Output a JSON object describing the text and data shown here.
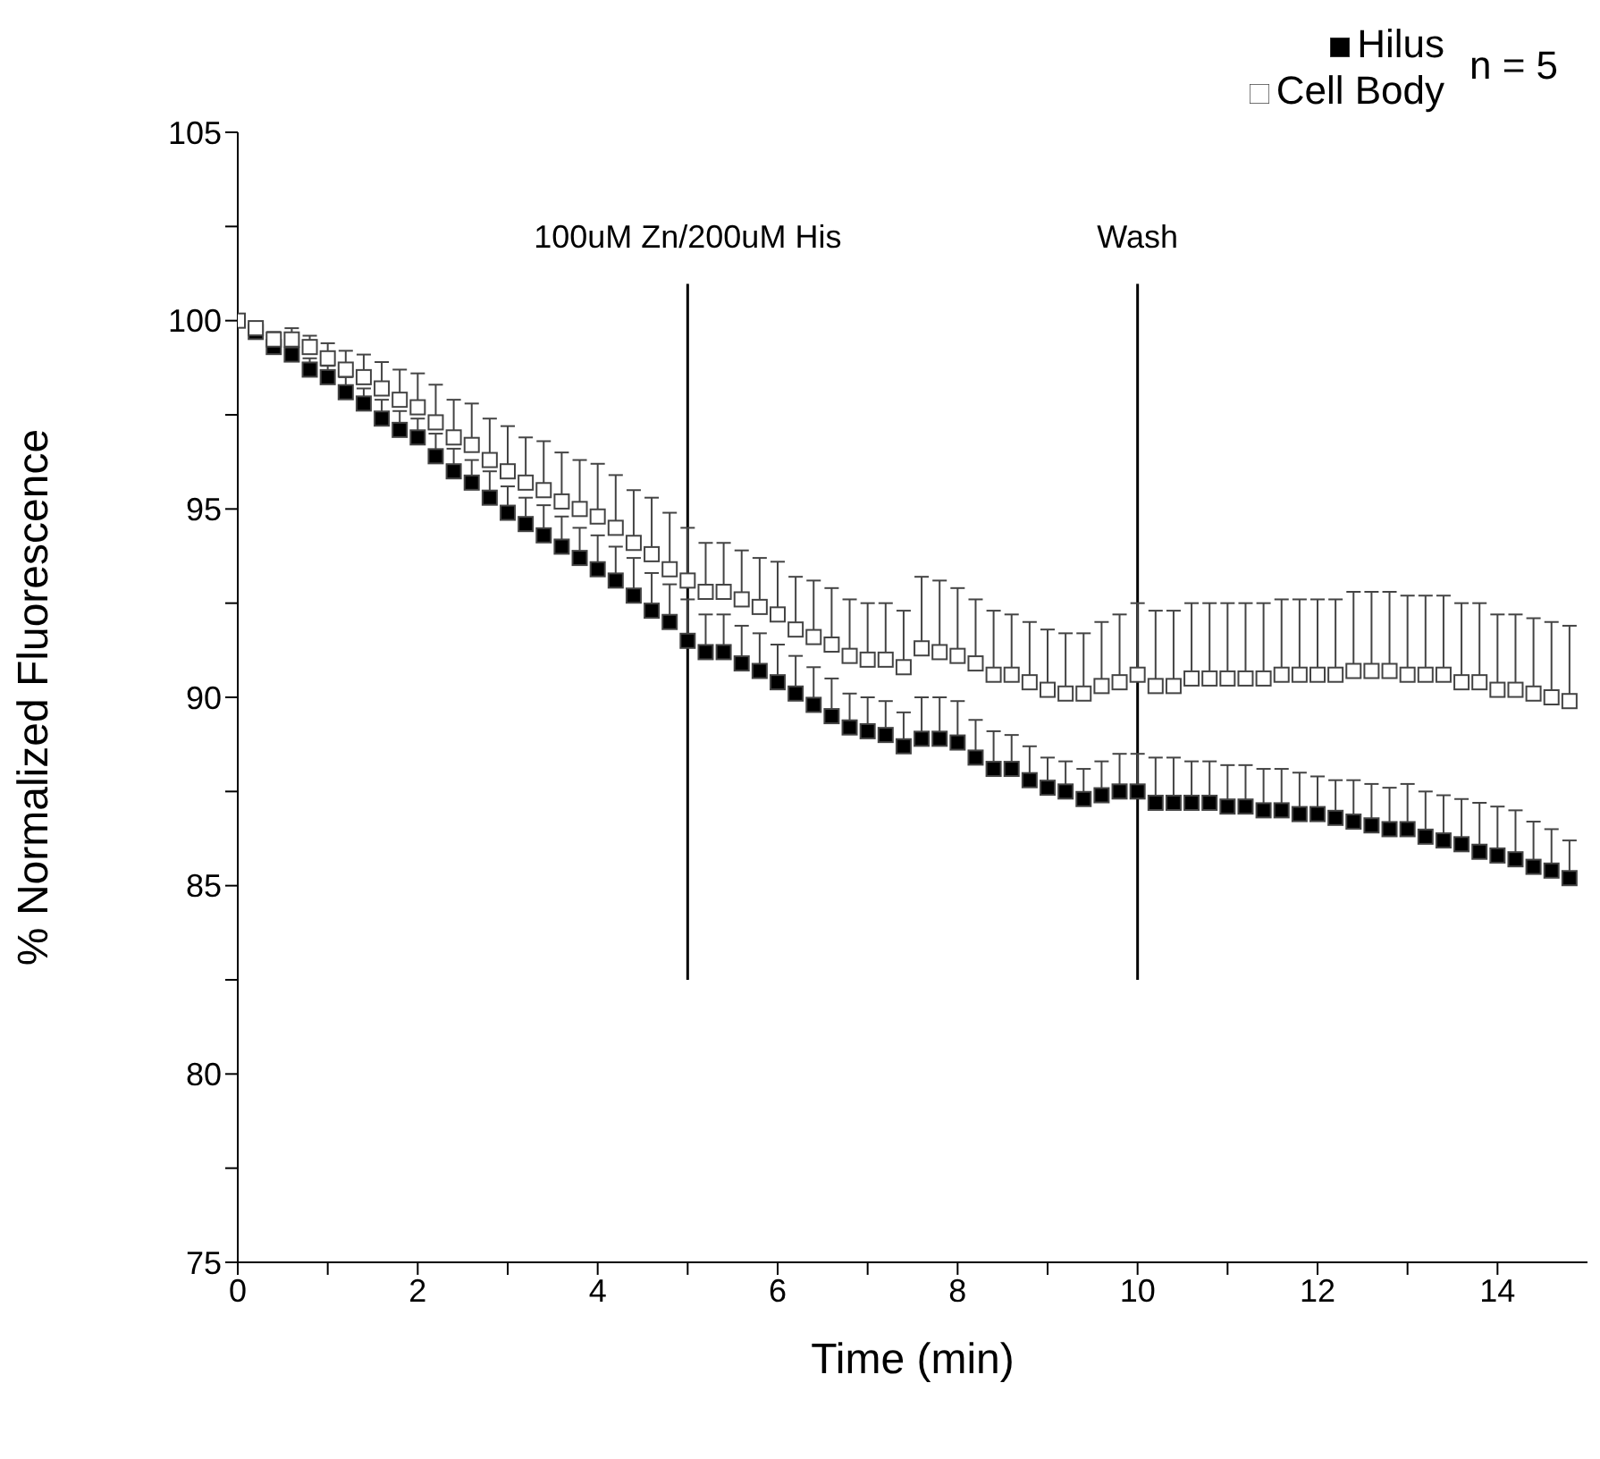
{
  "chart_data": {
    "type": "scatter",
    "xlabel": "Time (min)",
    "ylabel": "% Normalized Fluorescence",
    "x": [
      0,
      0.2,
      0.4,
      0.6,
      0.8,
      1.0,
      1.2,
      1.4,
      1.6,
      1.8,
      2.0,
      2.2,
      2.4,
      2.6,
      2.8,
      3.0,
      3.2,
      3.4,
      3.6,
      3.8,
      4.0,
      4.2,
      4.4,
      4.6,
      4.8,
      5.0,
      5.2,
      5.4,
      5.6,
      5.8,
      6.0,
      6.2,
      6.4,
      6.6,
      6.8,
      7.0,
      7.2,
      7.4,
      7.6,
      7.8,
      8.0,
      8.2,
      8.4,
      8.6,
      8.8,
      9.0,
      9.2,
      9.4,
      9.6,
      9.8,
      10.0,
      10.2,
      10.4,
      10.6,
      10.8,
      11.0,
      11.2,
      11.4,
      11.6,
      11.8,
      12.0,
      12.2,
      12.4,
      12.6,
      12.8,
      13.0,
      13.2,
      13.4,
      13.6,
      13.8,
      14.0,
      14.2,
      14.4,
      14.6,
      14.8
    ],
    "series": [
      {
        "name": "Hilus",
        "color": "#000000",
        "values": [
          null,
          99.7,
          99.3,
          99.1,
          98.7,
          98.5,
          98.1,
          97.8,
          97.4,
          97.1,
          96.9,
          96.4,
          96.0,
          95.7,
          95.3,
          94.9,
          94.6,
          94.3,
          94.0,
          93.7,
          93.4,
          93.1,
          92.7,
          92.3,
          92.0,
          91.5,
          91.2,
          91.2,
          90.9,
          90.7,
          90.4,
          90.1,
          89.8,
          89.5,
          89.2,
          89.1,
          89.0,
          88.7,
          88.9,
          88.9,
          88.8,
          88.4,
          88.1,
          88.1,
          87.8,
          87.6,
          87.5,
          87.3,
          87.4,
          87.5,
          87.5,
          87.2,
          87.2,
          87.2,
          87.2,
          87.1,
          87.1,
          87.0,
          87.0,
          86.9,
          86.9,
          86.8,
          86.7,
          86.6,
          86.5,
          86.5,
          86.3,
          86.2,
          86.1,
          85.9,
          85.8,
          85.7,
          85.5,
          85.4,
          85.2
        ],
        "errors": [
          null,
          [
            99.7,
            99.8
          ],
          null,
          [
            99.1,
            99.3
          ],
          [
            98.7,
            99.0
          ],
          [
            98.5,
            98.8
          ],
          [
            98.1,
            98.5
          ],
          [
            97.8,
            98.2
          ],
          [
            97.4,
            97.9
          ],
          [
            97.1,
            97.6
          ],
          [
            96.9,
            97.4
          ],
          [
            96.4,
            97.0
          ],
          [
            96.0,
            96.6
          ],
          [
            95.7,
            96.3
          ],
          [
            95.3,
            96.0
          ],
          [
            94.9,
            95.6
          ],
          [
            94.6,
            95.3
          ],
          [
            94.3,
            95.1
          ],
          [
            94.0,
            94.8
          ],
          [
            93.7,
            94.5
          ],
          [
            93.4,
            94.3
          ],
          [
            93.1,
            94.0
          ],
          [
            92.7,
            93.7
          ],
          [
            92.3,
            93.3
          ],
          [
            92.0,
            93.0
          ],
          [
            91.5,
            92.6
          ],
          [
            91.2,
            92.2
          ],
          [
            91.2,
            92.2
          ],
          [
            90.9,
            91.9
          ],
          [
            90.7,
            91.7
          ],
          [
            90.4,
            91.4
          ],
          [
            90.1,
            91.1
          ],
          [
            89.8,
            90.8
          ],
          [
            89.5,
            90.5
          ],
          [
            89.2,
            90.1
          ],
          [
            89.1,
            90.0
          ],
          [
            89.0,
            89.9
          ],
          [
            88.7,
            89.6
          ],
          [
            88.9,
            90.0
          ],
          [
            88.9,
            90.0
          ],
          [
            88.8,
            89.9
          ],
          [
            88.4,
            89.4
          ],
          [
            88.1,
            89.1
          ],
          [
            88.1,
            89.0
          ],
          [
            87.8,
            88.7
          ],
          [
            87.6,
            88.4
          ],
          [
            87.5,
            88.3
          ],
          [
            87.3,
            88.1
          ],
          [
            87.4,
            88.3
          ],
          [
            87.5,
            88.5
          ],
          [
            87.5,
            88.5
          ],
          [
            87.2,
            88.4
          ],
          [
            87.2,
            88.4
          ],
          [
            87.2,
            88.3
          ],
          [
            87.2,
            88.3
          ],
          [
            87.1,
            88.2
          ],
          [
            87.1,
            88.2
          ],
          [
            87.0,
            88.1
          ],
          [
            87.0,
            88.1
          ],
          [
            86.9,
            88.0
          ],
          [
            86.9,
            87.9
          ],
          [
            86.8,
            87.8
          ],
          [
            86.7,
            87.8
          ],
          [
            86.6,
            87.7
          ],
          [
            86.5,
            87.6
          ],
          [
            86.5,
            87.7
          ],
          [
            86.3,
            87.5
          ],
          [
            86.2,
            87.4
          ],
          [
            86.1,
            87.3
          ],
          [
            85.9,
            87.2
          ],
          [
            85.8,
            87.1
          ],
          [
            85.7,
            87.0
          ],
          [
            85.5,
            86.7
          ],
          [
            85.4,
            86.5
          ],
          [
            85.2,
            86.2
          ]
        ]
      },
      {
        "name": "Cell Body",
        "color": "#ffffff",
        "values": [
          100,
          99.8,
          99.5,
          99.5,
          99.3,
          99.0,
          98.7,
          98.5,
          98.2,
          97.9,
          97.7,
          97.3,
          96.9,
          96.7,
          96.3,
          96.0,
          95.7,
          95.5,
          95.2,
          95.0,
          94.8,
          94.5,
          94.1,
          93.8,
          93.4,
          93.1,
          92.8,
          92.8,
          92.6,
          92.4,
          92.2,
          91.8,
          91.6,
          91.4,
          91.1,
          91.0,
          91.0,
          90.8,
          91.3,
          91.2,
          91.1,
          90.9,
          90.6,
          90.6,
          90.4,
          90.2,
          90.1,
          90.1,
          90.3,
          90.4,
          90.6,
          90.3,
          90.3,
          90.5,
          90.5,
          90.5,
          90.5,
          90.5,
          90.6,
          90.6,
          90.6,
          90.6,
          90.7,
          90.7,
          90.7,
          90.6,
          90.6,
          90.6,
          90.4,
          90.4,
          90.2,
          90.2,
          90.1,
          90.0,
          89.9
        ],
        "errors": [
          null,
          [
            99.8,
            99.9
          ],
          [
            99.5,
            99.7
          ],
          [
            99.5,
            99.8
          ],
          [
            99.3,
            99.6
          ],
          [
            99.0,
            99.4
          ],
          [
            98.7,
            99.2
          ],
          [
            98.5,
            99.1
          ],
          [
            98.2,
            98.9
          ],
          [
            97.9,
            98.7
          ],
          [
            97.7,
            98.6
          ],
          [
            97.3,
            98.3
          ],
          [
            96.9,
            97.9
          ],
          [
            96.7,
            97.8
          ],
          [
            96.3,
            97.4
          ],
          [
            96.0,
            97.2
          ],
          [
            95.7,
            96.9
          ],
          [
            95.5,
            96.8
          ],
          [
            95.2,
            96.5
          ],
          [
            95.0,
            96.3
          ],
          [
            94.8,
            96.2
          ],
          [
            94.5,
            95.9
          ],
          [
            94.1,
            95.5
          ],
          [
            93.8,
            95.3
          ],
          [
            93.4,
            94.9
          ],
          [
            93.1,
            94.5
          ],
          [
            92.8,
            94.1
          ],
          [
            92.8,
            94.1
          ],
          [
            92.6,
            93.9
          ],
          [
            92.4,
            93.7
          ],
          [
            92.2,
            93.6
          ],
          [
            91.8,
            93.2
          ],
          [
            91.6,
            93.1
          ],
          [
            91.4,
            92.9
          ],
          [
            91.1,
            92.6
          ],
          [
            91.0,
            92.5
          ],
          [
            91.0,
            92.5
          ],
          [
            90.8,
            92.3
          ],
          [
            91.3,
            93.2
          ],
          [
            91.2,
            93.1
          ],
          [
            91.1,
            92.9
          ],
          [
            90.9,
            92.6
          ],
          [
            90.6,
            92.3
          ],
          [
            90.6,
            92.2
          ],
          [
            90.4,
            92.0
          ],
          [
            90.2,
            91.8
          ],
          [
            90.1,
            91.7
          ],
          [
            90.1,
            91.7
          ],
          [
            90.3,
            92.0
          ],
          [
            90.4,
            92.2
          ],
          [
            90.6,
            92.5
          ],
          [
            90.3,
            92.3
          ],
          [
            90.3,
            92.3
          ],
          [
            90.5,
            92.5
          ],
          [
            90.5,
            92.5
          ],
          [
            90.5,
            92.5
          ],
          [
            90.5,
            92.5
          ],
          [
            90.5,
            92.5
          ],
          [
            90.6,
            92.6
          ],
          [
            90.6,
            92.6
          ],
          [
            90.6,
            92.6
          ],
          [
            90.6,
            92.6
          ],
          [
            90.7,
            92.8
          ],
          [
            90.7,
            92.8
          ],
          [
            90.7,
            92.8
          ],
          [
            90.6,
            92.7
          ],
          [
            90.6,
            92.7
          ],
          [
            90.6,
            92.7
          ],
          [
            90.4,
            92.5
          ],
          [
            90.4,
            92.5
          ],
          [
            90.2,
            92.2
          ],
          [
            90.2,
            92.2
          ],
          [
            90.1,
            92.1
          ],
          [
            90.0,
            92.0
          ],
          [
            89.9,
            91.9
          ]
        ]
      }
    ],
    "xlim": [
      0,
      15
    ],
    "xticks": [
      0,
      {
        "value": 1,
        "label": null
      },
      2,
      {
        "value": 3,
        "label": null
      },
      4,
      {
        "value": 5,
        "label": null
      },
      6,
      {
        "value": 7,
        "label": null
      },
      8,
      {
        "value": 9,
        "label": null
      },
      10,
      {
        "value": 11,
        "label": null
      },
      12,
      {
        "value": 13,
        "label": null
      },
      14
    ],
    "ylim": [
      75,
      105
    ],
    "yticks": [
      75,
      {
        "value": 77.5,
        "label": null
      },
      80,
      {
        "value": 82.5,
        "label": null
      },
      85,
      {
        "value": 87.5,
        "label": null
      },
      90,
      {
        "value": 92.5,
        "label": null
      },
      95,
      {
        "value": 97.5,
        "label": null
      },
      100,
      {
        "value": 102.5,
        "label": null
      },
      105
    ],
    "ref_lines": [
      {
        "axis": "x",
        "value": 5,
        "label": "100uM Zn/200uM His",
        "color": "#000000"
      },
      {
        "axis": "x",
        "value": 10,
        "label": "Wash",
        "color": "#000000"
      }
    ],
    "annotations": [
      "n = 5"
    ],
    "marker": "square",
    "legend": "top right",
    "grid": false
  }
}
